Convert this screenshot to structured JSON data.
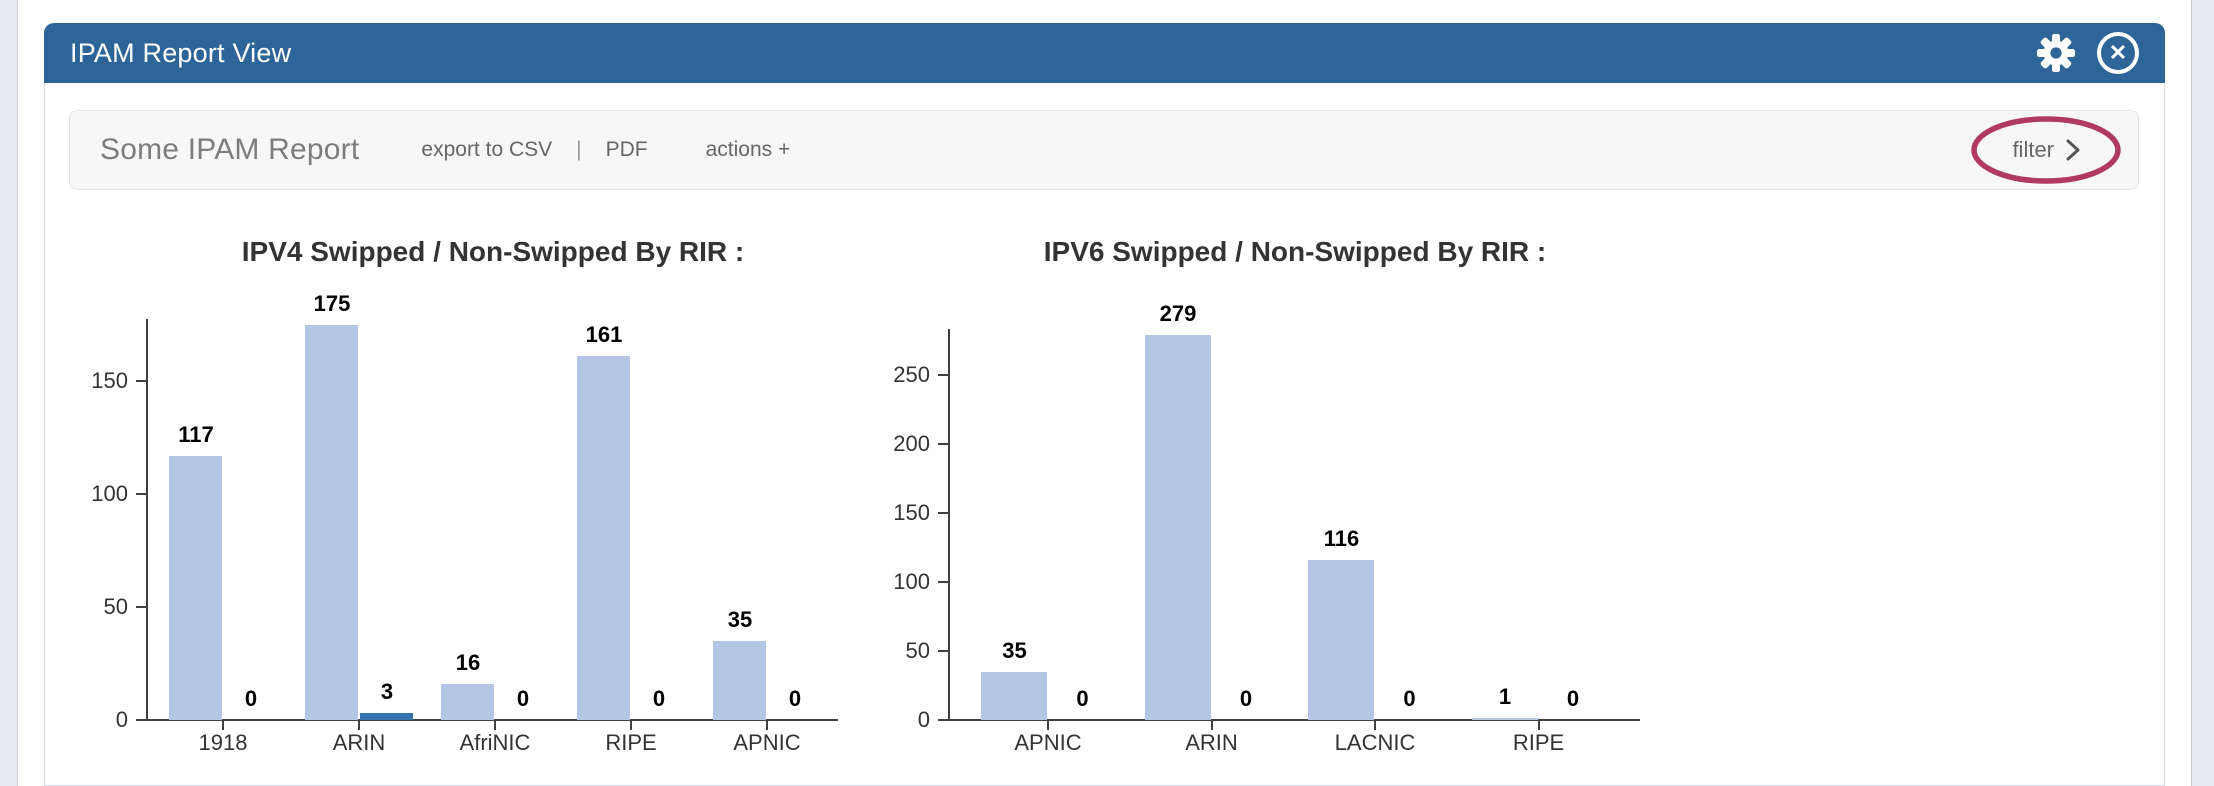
{
  "window": {
    "title": "IPAM Report View"
  },
  "toolbar": {
    "report_title": "Some IPAM Report",
    "export_csv_label": "export to CSV",
    "divider": "|",
    "pdf_label": "PDF",
    "actions_label": "actions +",
    "filter_label": "filter"
  },
  "icons": {
    "settings": "gear-icon",
    "close": "close-circle-icon",
    "filter_chevron": "chevron-right-icon"
  },
  "colors": {
    "header_blue": "#2e6599",
    "bar_light": "#b3c6e4",
    "bar_dark": "#3673ad",
    "axis": "#404040",
    "annotation_ellipse": "#b03a62"
  },
  "chart_data": [
    {
      "type": "bar",
      "title": "IPV4 Swipped / Non-Swipped By RIR :",
      "categories": [
        "1918",
        "ARIN",
        "AfriNIC",
        "RIPE",
        "APNIC"
      ],
      "series": [
        {
          "name": "Swipped",
          "values": [
            117,
            175,
            16,
            161,
            35
          ]
        },
        {
          "name": "Non-Swipped",
          "values": [
            0,
            3,
            0,
            0,
            0
          ]
        }
      ],
      "ylabel": "",
      "xlabel": "",
      "ylim": [
        0,
        180
      ],
      "yticks": [
        0,
        50,
        100,
        150
      ],
      "grid": false,
      "legend": "none"
    },
    {
      "type": "bar",
      "title": "IPV6 Swipped / Non-Swipped By RIR :",
      "categories": [
        "APNIC",
        "ARIN",
        "LACNIC",
        "RIPE"
      ],
      "series": [
        {
          "name": "Swipped",
          "values": [
            35,
            279,
            116,
            1
          ]
        },
        {
          "name": "Non-Swipped",
          "values": [
            0,
            0,
            0,
            0
          ]
        }
      ],
      "ylabel": "",
      "xlabel": "",
      "ylim": [
        0,
        285
      ],
      "yticks": [
        0,
        50,
        100,
        150,
        200,
        250
      ],
      "grid": false,
      "legend": "none"
    }
  ]
}
